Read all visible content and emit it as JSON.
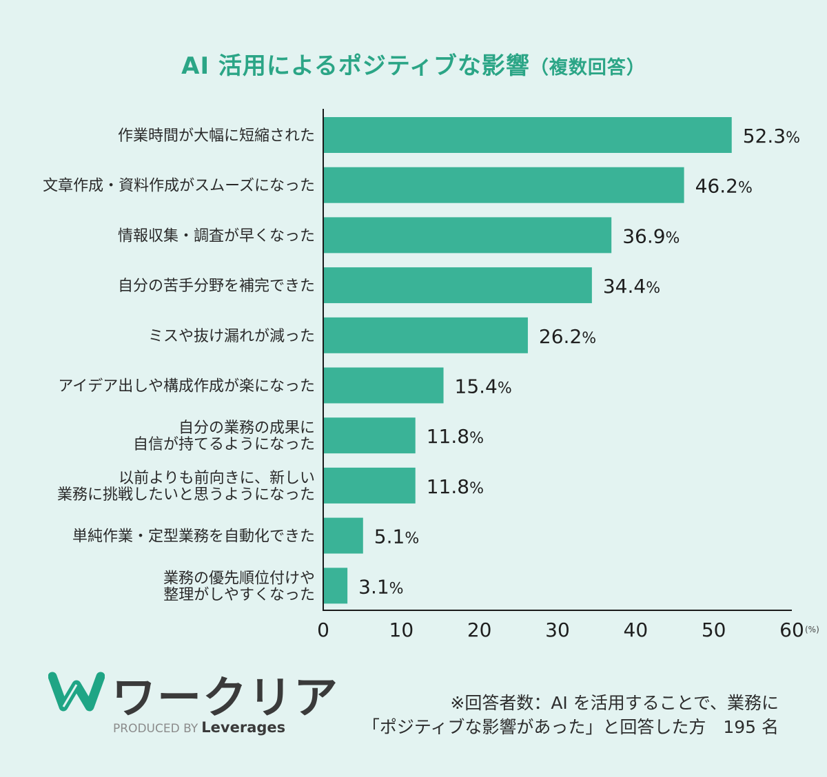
{
  "title": {
    "main": "AI 活用によるポジティブな影響",
    "sub": "（複数回答）"
  },
  "chart_data": {
    "type": "bar",
    "orientation": "horizontal",
    "categories": [
      [
        "作業時間が大幅に短縮された"
      ],
      [
        "文章作成・資料作成がスムーズになった"
      ],
      [
        "情報収集・調査が早くなった"
      ],
      [
        "自分の苦手分野を補完できた"
      ],
      [
        "ミスや抜け漏れが減った"
      ],
      [
        "アイデア出しや構成作成が楽になった"
      ],
      [
        "自分の業務の成果に",
        "自信が持てるようになった"
      ],
      [
        "以前よりも前向きに、新しい",
        "業務に挑戦したいと思うようになった"
      ],
      [
        "単純作業・定型業務を自動化できた"
      ],
      [
        "業務の優先順位付けや",
        "整理がしやすくなった"
      ]
    ],
    "values": [
      52.3,
      46.2,
      36.9,
      34.4,
      26.2,
      15.4,
      11.8,
      11.8,
      5.1,
      3.1
    ],
    "value_suffix": "%",
    "xlim": [
      0,
      60
    ],
    "xticks": [
      0,
      10,
      20,
      30,
      40,
      50,
      60
    ],
    "x_unit": "(%)",
    "bar_color": "#3ab397",
    "grid": false
  },
  "logo": {
    "name": "ワークリア",
    "produced_by": "PRODUCED BY",
    "brand": "Leverages",
    "color": "#1fa585"
  },
  "footnote": {
    "line1": "※回答者数：AI を活用することで、業務に",
    "line2": "「ポジティブな影響があった」と回答した方　195 名"
  }
}
